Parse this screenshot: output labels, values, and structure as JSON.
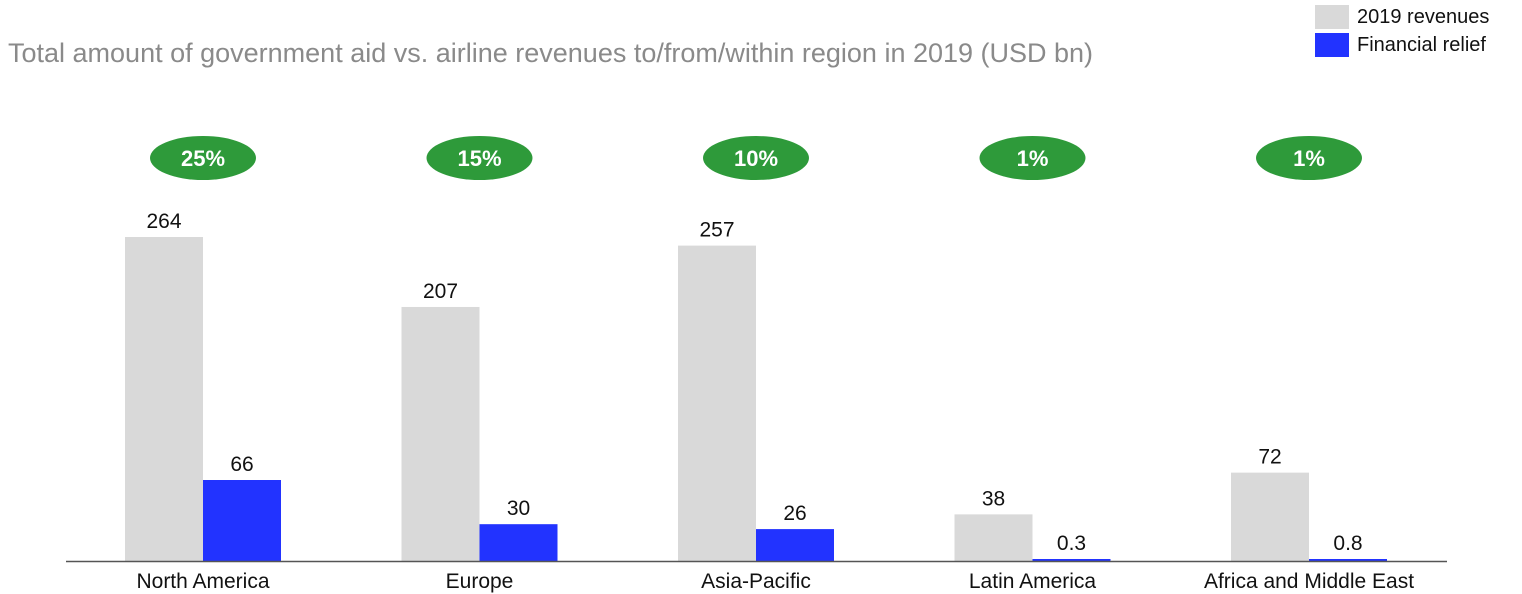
{
  "chart_data": {
    "type": "bar",
    "title": "Total amount of government aid vs. airline revenues to/from/within region in 2019 (USD bn)",
    "xlabel": "",
    "ylabel": "",
    "ylim": [
      0,
      264
    ],
    "grid": false,
    "legend_position": "top-right",
    "categories": [
      "North America",
      "Europe",
      "Asia-Pacific",
      "Latin America",
      "Africa and Middle East"
    ],
    "series": [
      {
        "name": "2019 revenues",
        "values": [
          264,
          207,
          257,
          38,
          72
        ],
        "labels": [
          "264",
          "207",
          "257",
          "38",
          "72"
        ],
        "color": "#d9d9d9"
      },
      {
        "name": "Financial relief",
        "values": [
          66,
          30,
          26,
          0.3,
          0.8
        ],
        "labels": [
          "66",
          "30",
          "26",
          "0.3",
          "0.8"
        ],
        "color": "#2233ff"
      }
    ],
    "annotations": [
      "25%",
      "15%",
      "10%",
      "1%",
      "1%"
    ],
    "annotation_color": "#2e9a3a",
    "axis_color": "#555555",
    "text_color": "#111111"
  }
}
